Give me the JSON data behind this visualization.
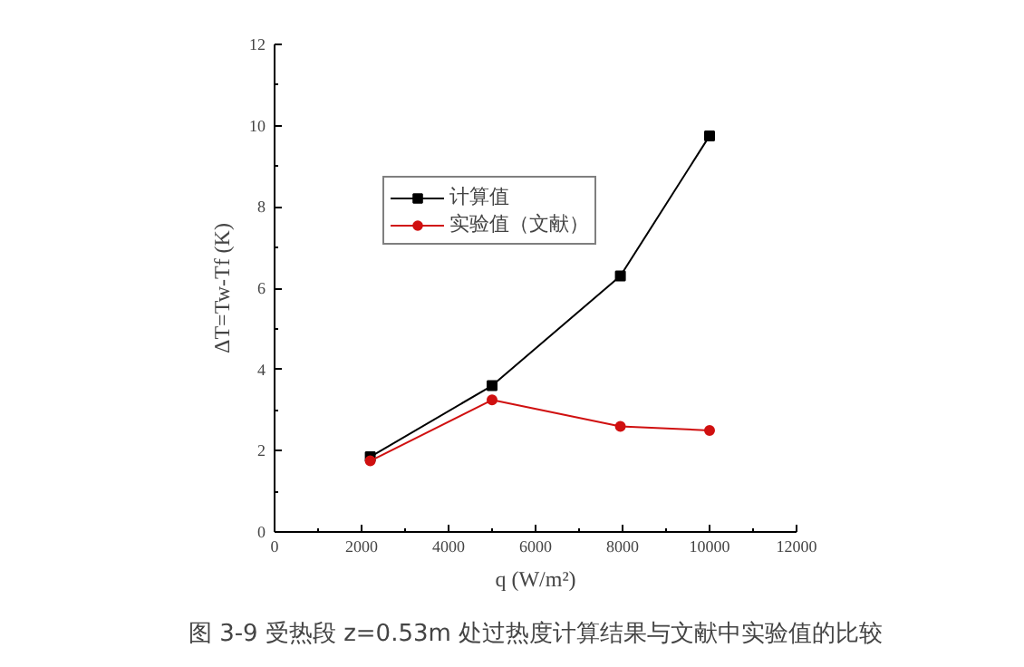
{
  "chart_data": {
    "type": "line",
    "xlabel": "q (W/m²)",
    "ylabel": "ΔT=Tw-Tf (K)",
    "x": [
      2200,
      5000,
      7950,
      10000
    ],
    "series": [
      {
        "name": "计算值",
        "color": "#000000",
        "marker": "square",
        "values": [
          1.85,
          3.6,
          6.3,
          9.75
        ]
      },
      {
        "name": "实验值（文献）",
        "color": "#d01010",
        "marker": "circle",
        "values": [
          1.75,
          3.25,
          2.6,
          2.5
        ]
      }
    ],
    "xlim": [
      0,
      12000
    ],
    "xticks": [
      0,
      2000,
      4000,
      6000,
      8000,
      10000,
      12000
    ],
    "ylim": [
      0,
      12
    ],
    "yticks": [
      0,
      2,
      4,
      6,
      8,
      10,
      12
    ],
    "grid": false,
    "legend": "top left",
    "line_style": "solid",
    "annotations": [
      "图 3-9 受热段 z=0.53m 处过热度计算结果与文献中实验值的比较"
    ]
  }
}
